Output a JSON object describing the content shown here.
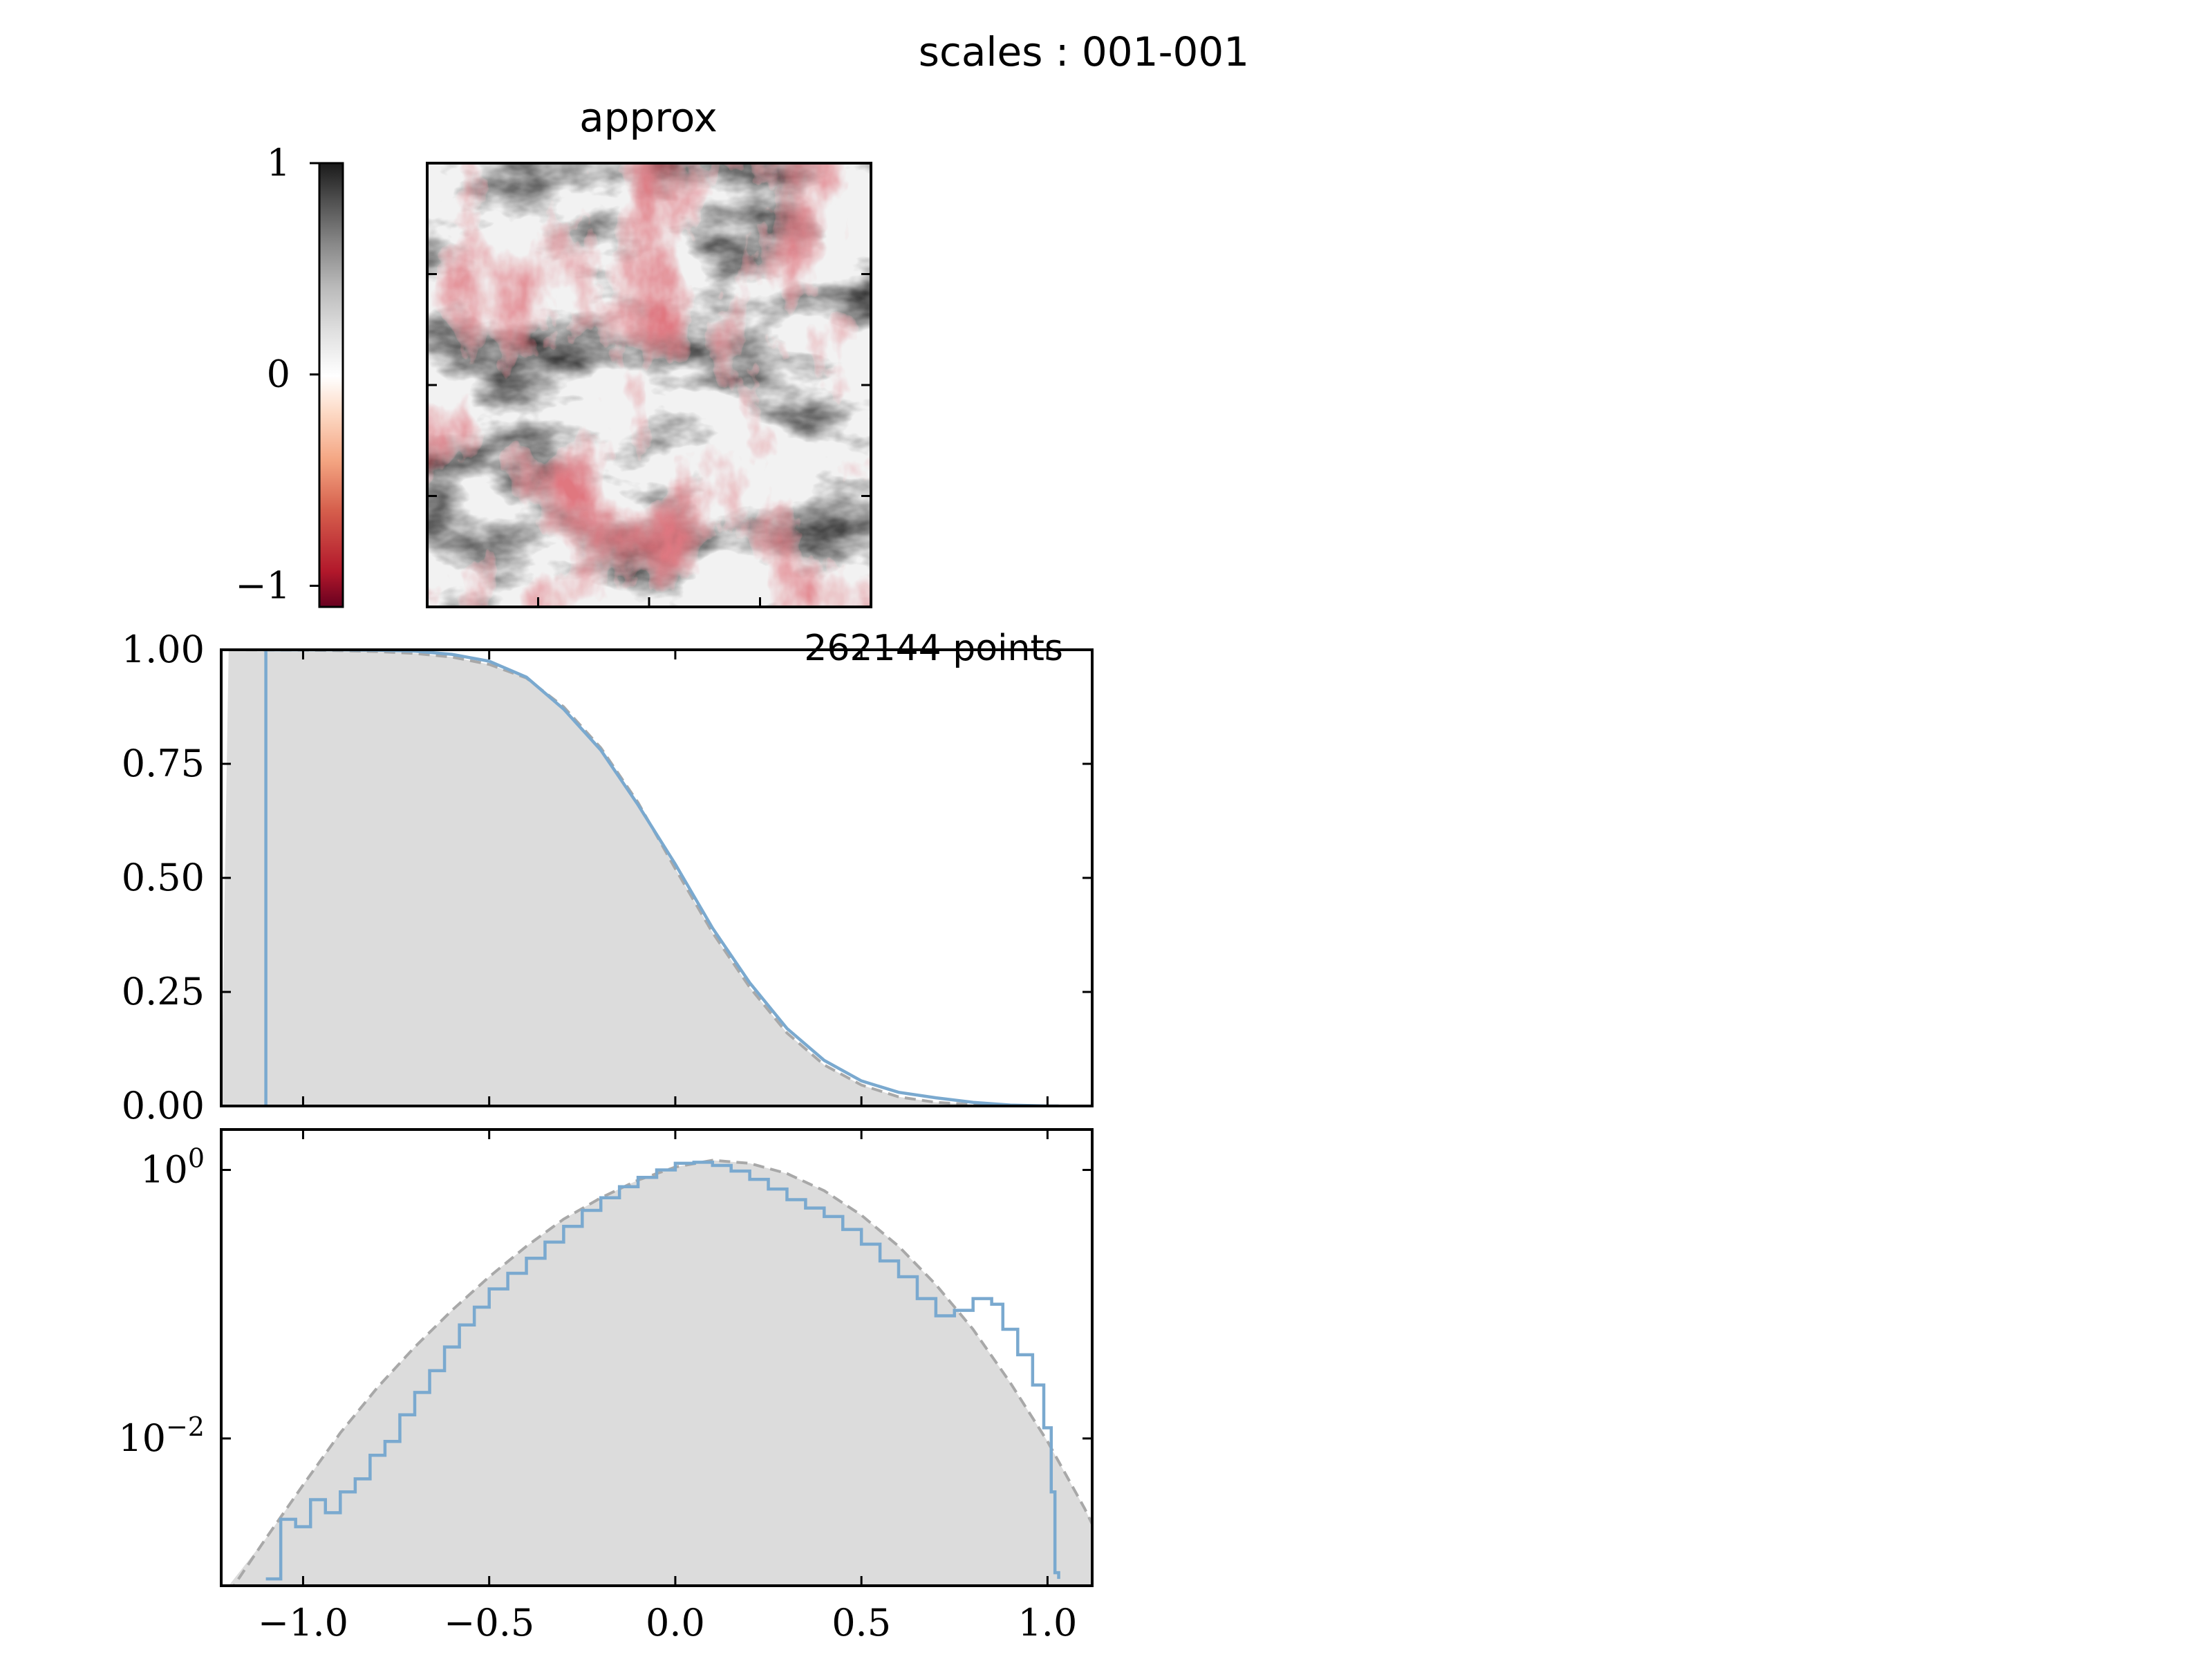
{
  "figure": {
    "suptitle": "scales :  001-001"
  },
  "colors": {
    "axis": "#000000",
    "fill": "#dcdcdc",
    "empirical": "#7aa9cf",
    "reference": "#a8a8a8",
    "cmap": [
      "#67001f",
      "#b2182b",
      "#d6604d",
      "#f4a582",
      "#fddbc7",
      "#ffffff",
      "#e0e0e0",
      "#bababa",
      "#878787",
      "#4d4d4d",
      "#1a1a1a"
    ]
  },
  "chart_data": [
    {
      "type": "heatmap",
      "title": "approx",
      "colorbar": {
        "ticks": [
          {
            "value": 1,
            "label": "1"
          },
          {
            "value": 0,
            "label": "0"
          },
          {
            "value": -1,
            "label": "−1"
          }
        ],
        "range": [
          -1.1,
          1.0
        ]
      },
      "description_free_field": null
    },
    {
      "type": "area",
      "annotation": "262144 points",
      "xlim": [
        -1.22,
        1.12
      ],
      "ylim": [
        0.0,
        1.0
      ],
      "ytick_labels": [
        "1.00",
        "0.75",
        "0.50",
        "0.25",
        "0.00"
      ],
      "yticks": [
        1.0,
        0.75,
        0.5,
        0.25,
        0.0
      ],
      "xticks": [
        -1.0,
        -0.5,
        0.0,
        0.5,
        1.0
      ],
      "series": [
        {
          "x": [
            -1.1,
            -1.0,
            -0.9,
            -0.8,
            -0.7,
            -0.6,
            -0.5,
            -0.4,
            -0.3,
            -0.2,
            -0.1,
            0.0,
            0.1,
            0.2,
            0.3,
            0.4,
            0.5,
            0.6,
            0.7,
            0.8,
            0.9,
            1.0,
            1.03
          ],
          "y": [
            1.0,
            1.0,
            1.0,
            0.999,
            0.997,
            0.99,
            0.975,
            0.94,
            0.87,
            0.78,
            0.66,
            0.53,
            0.39,
            0.27,
            0.17,
            0.1,
            0.055,
            0.03,
            0.018,
            0.008,
            0.002,
            0.0,
            0.0
          ]
        },
        {
          "style": "dashed",
          "x": [
            -1.2,
            -1.0,
            -0.9,
            -0.8,
            -0.7,
            -0.6,
            -0.5,
            -0.4,
            -0.3,
            -0.2,
            -0.1,
            0.0,
            0.1,
            0.2,
            0.3,
            0.4,
            0.5,
            0.6,
            0.7,
            0.8,
            0.9,
            1.0,
            1.1
          ],
          "y": [
            1.0,
            0.999,
            0.998,
            0.996,
            0.992,
            0.984,
            0.968,
            0.938,
            0.875,
            0.785,
            0.665,
            0.52,
            0.38,
            0.26,
            0.16,
            0.09,
            0.046,
            0.02,
            0.008,
            0.003,
            0.001,
            0.0,
            0.0
          ]
        }
      ]
    },
    {
      "type": "line",
      "yscale": "log",
      "xlim": [
        -1.22,
        1.12
      ],
      "ylim": [
        0.0008,
        2.0
      ],
      "yticks": [
        {
          "value": 1,
          "base": "10",
          "exp": "0"
        },
        {
          "value": 0.01,
          "base": "10",
          "exp": "−2"
        }
      ],
      "xticks": [
        -1.0,
        -0.5,
        0.0,
        0.5,
        1.0
      ],
      "xtick_labels": [
        "−1.0",
        "−0.5",
        "0.0",
        "0.5",
        "1.0"
      ],
      "series": [
        {
          "x": [
            -1.1,
            -1.06,
            -1.02,
            -0.98,
            -0.94,
            -0.9,
            -0.86,
            -0.82,
            -0.78,
            -0.74,
            -0.7,
            -0.66,
            -0.62,
            -0.58,
            -0.54,
            -0.5,
            -0.45,
            -0.4,
            -0.35,
            -0.3,
            -0.25,
            -0.2,
            -0.15,
            -0.1,
            -0.05,
            0.0,
            0.05,
            0.1,
            0.15,
            0.2,
            0.25,
            0.3,
            0.35,
            0.4,
            0.45,
            0.5,
            0.55,
            0.6,
            0.65,
            0.7,
            0.75,
            0.8,
            0.85,
            0.88,
            0.92,
            0.96,
            0.99,
            1.01,
            1.02,
            1.03
          ],
          "y": [
            0.0009,
            0.0025,
            0.0022,
            0.0035,
            0.0028,
            0.004,
            0.005,
            0.0075,
            0.0095,
            0.015,
            0.022,
            0.032,
            0.048,
            0.07,
            0.095,
            0.13,
            0.17,
            0.22,
            0.29,
            0.38,
            0.5,
            0.62,
            0.75,
            0.88,
            1.0,
            1.12,
            1.14,
            1.08,
            0.98,
            0.85,
            0.72,
            0.6,
            0.52,
            0.45,
            0.36,
            0.28,
            0.21,
            0.16,
            0.11,
            0.082,
            0.09,
            0.11,
            0.1,
            0.065,
            0.042,
            0.025,
            0.012,
            0.004,
            0.001,
            0.0009
          ]
        },
        {
          "style": "dashed",
          "x": [
            -1.2,
            -1.1,
            -1.0,
            -0.9,
            -0.8,
            -0.7,
            -0.6,
            -0.5,
            -0.4,
            -0.3,
            -0.2,
            -0.1,
            0.0,
            0.1,
            0.2,
            0.3,
            0.4,
            0.5,
            0.6,
            0.7,
            0.8,
            0.9,
            1.0,
            1.1,
            1.12
          ],
          "y": [
            0.0007,
            0.0018,
            0.0045,
            0.011,
            0.024,
            0.048,
            0.09,
            0.16,
            0.27,
            0.43,
            0.62,
            0.84,
            1.05,
            1.18,
            1.12,
            0.94,
            0.7,
            0.46,
            0.27,
            0.14,
            0.065,
            0.026,
            0.0095,
            0.003,
            0.0023
          ]
        }
      ]
    }
  ]
}
